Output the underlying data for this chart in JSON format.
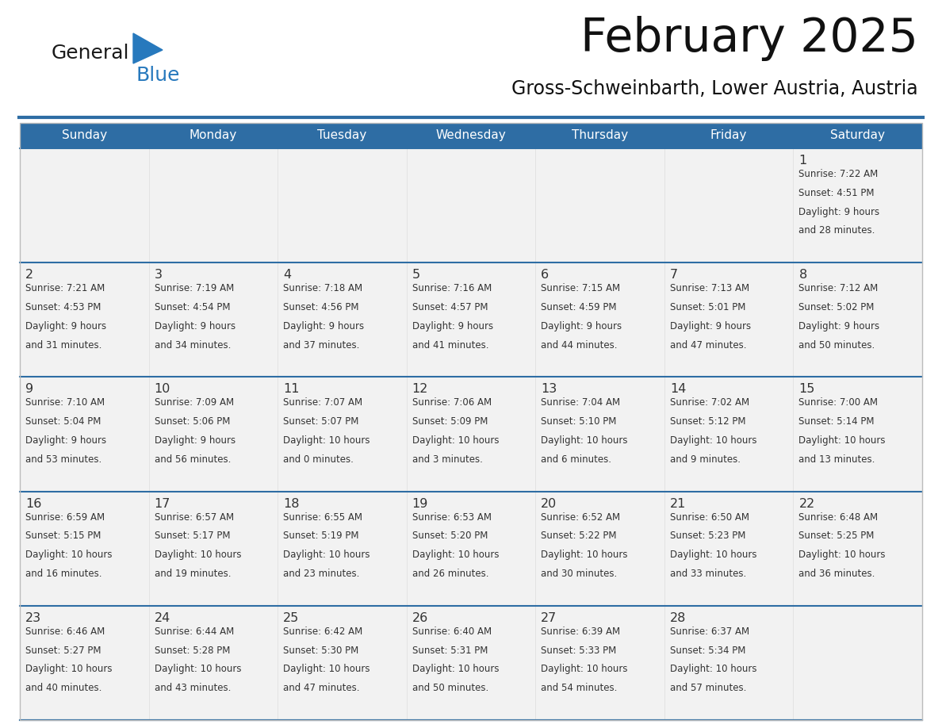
{
  "title": "February 2025",
  "subtitle": "Gross-Schweinbarth, Lower Austria, Austria",
  "header_bg": "#2E6DA4",
  "header_text": "#FFFFFF",
  "cell_bg": "#F2F2F2",
  "cell_bg_white": "#FFFFFF",
  "text_color": "#333333",
  "border_color": "#2E6DA4",
  "days_of_week": [
    "Sunday",
    "Monday",
    "Tuesday",
    "Wednesday",
    "Thursday",
    "Friday",
    "Saturday"
  ],
  "logo_general_color": "#1a1a1a",
  "logo_blue_color": "#2779BD",
  "calendar_data": [
    [
      null,
      null,
      null,
      null,
      null,
      null,
      {
        "day": "1",
        "sunrise": "7:22 AM",
        "sunset": "4:51 PM",
        "daylight1": "9 hours",
        "daylight2": "and 28 minutes."
      }
    ],
    [
      {
        "day": "2",
        "sunrise": "7:21 AM",
        "sunset": "4:53 PM",
        "daylight1": "9 hours",
        "daylight2": "and 31 minutes."
      },
      {
        "day": "3",
        "sunrise": "7:19 AM",
        "sunset": "4:54 PM",
        "daylight1": "9 hours",
        "daylight2": "and 34 minutes."
      },
      {
        "day": "4",
        "sunrise": "7:18 AM",
        "sunset": "4:56 PM",
        "daylight1": "9 hours",
        "daylight2": "and 37 minutes."
      },
      {
        "day": "5",
        "sunrise": "7:16 AM",
        "sunset": "4:57 PM",
        "daylight1": "9 hours",
        "daylight2": "and 41 minutes."
      },
      {
        "day": "6",
        "sunrise": "7:15 AM",
        "sunset": "4:59 PM",
        "daylight1": "9 hours",
        "daylight2": "and 44 minutes."
      },
      {
        "day": "7",
        "sunrise": "7:13 AM",
        "sunset": "5:01 PM",
        "daylight1": "9 hours",
        "daylight2": "and 47 minutes."
      },
      {
        "day": "8",
        "sunrise": "7:12 AM",
        "sunset": "5:02 PM",
        "daylight1": "9 hours",
        "daylight2": "and 50 minutes."
      }
    ],
    [
      {
        "day": "9",
        "sunrise": "7:10 AM",
        "sunset": "5:04 PM",
        "daylight1": "9 hours",
        "daylight2": "and 53 minutes."
      },
      {
        "day": "10",
        "sunrise": "7:09 AM",
        "sunset": "5:06 PM",
        "daylight1": "9 hours",
        "daylight2": "and 56 minutes."
      },
      {
        "day": "11",
        "sunrise": "7:07 AM",
        "sunset": "5:07 PM",
        "daylight1": "10 hours",
        "daylight2": "and 0 minutes."
      },
      {
        "day": "12",
        "sunrise": "7:06 AM",
        "sunset": "5:09 PM",
        "daylight1": "10 hours",
        "daylight2": "and 3 minutes."
      },
      {
        "day": "13",
        "sunrise": "7:04 AM",
        "sunset": "5:10 PM",
        "daylight1": "10 hours",
        "daylight2": "and 6 minutes."
      },
      {
        "day": "14",
        "sunrise": "7:02 AM",
        "sunset": "5:12 PM",
        "daylight1": "10 hours",
        "daylight2": "and 9 minutes."
      },
      {
        "day": "15",
        "sunrise": "7:00 AM",
        "sunset": "5:14 PM",
        "daylight1": "10 hours",
        "daylight2": "and 13 minutes."
      }
    ],
    [
      {
        "day": "16",
        "sunrise": "6:59 AM",
        "sunset": "5:15 PM",
        "daylight1": "10 hours",
        "daylight2": "and 16 minutes."
      },
      {
        "day": "17",
        "sunrise": "6:57 AM",
        "sunset": "5:17 PM",
        "daylight1": "10 hours",
        "daylight2": "and 19 minutes."
      },
      {
        "day": "18",
        "sunrise": "6:55 AM",
        "sunset": "5:19 PM",
        "daylight1": "10 hours",
        "daylight2": "and 23 minutes."
      },
      {
        "day": "19",
        "sunrise": "6:53 AM",
        "sunset": "5:20 PM",
        "daylight1": "10 hours",
        "daylight2": "and 26 minutes."
      },
      {
        "day": "20",
        "sunrise": "6:52 AM",
        "sunset": "5:22 PM",
        "daylight1": "10 hours",
        "daylight2": "and 30 minutes."
      },
      {
        "day": "21",
        "sunrise": "6:50 AM",
        "sunset": "5:23 PM",
        "daylight1": "10 hours",
        "daylight2": "and 33 minutes."
      },
      {
        "day": "22",
        "sunrise": "6:48 AM",
        "sunset": "5:25 PM",
        "daylight1": "10 hours",
        "daylight2": "and 36 minutes."
      }
    ],
    [
      {
        "day": "23",
        "sunrise": "6:46 AM",
        "sunset": "5:27 PM",
        "daylight1": "10 hours",
        "daylight2": "and 40 minutes."
      },
      {
        "day": "24",
        "sunrise": "6:44 AM",
        "sunset": "5:28 PM",
        "daylight1": "10 hours",
        "daylight2": "and 43 minutes."
      },
      {
        "day": "25",
        "sunrise": "6:42 AM",
        "sunset": "5:30 PM",
        "daylight1": "10 hours",
        "daylight2": "and 47 minutes."
      },
      {
        "day": "26",
        "sunrise": "6:40 AM",
        "sunset": "5:31 PM",
        "daylight1": "10 hours",
        "daylight2": "and 50 minutes."
      },
      {
        "day": "27",
        "sunrise": "6:39 AM",
        "sunset": "5:33 PM",
        "daylight1": "10 hours",
        "daylight2": "and 54 minutes."
      },
      {
        "day": "28",
        "sunrise": "6:37 AM",
        "sunset": "5:34 PM",
        "daylight1": "10 hours",
        "daylight2": "and 57 minutes."
      },
      null
    ]
  ]
}
